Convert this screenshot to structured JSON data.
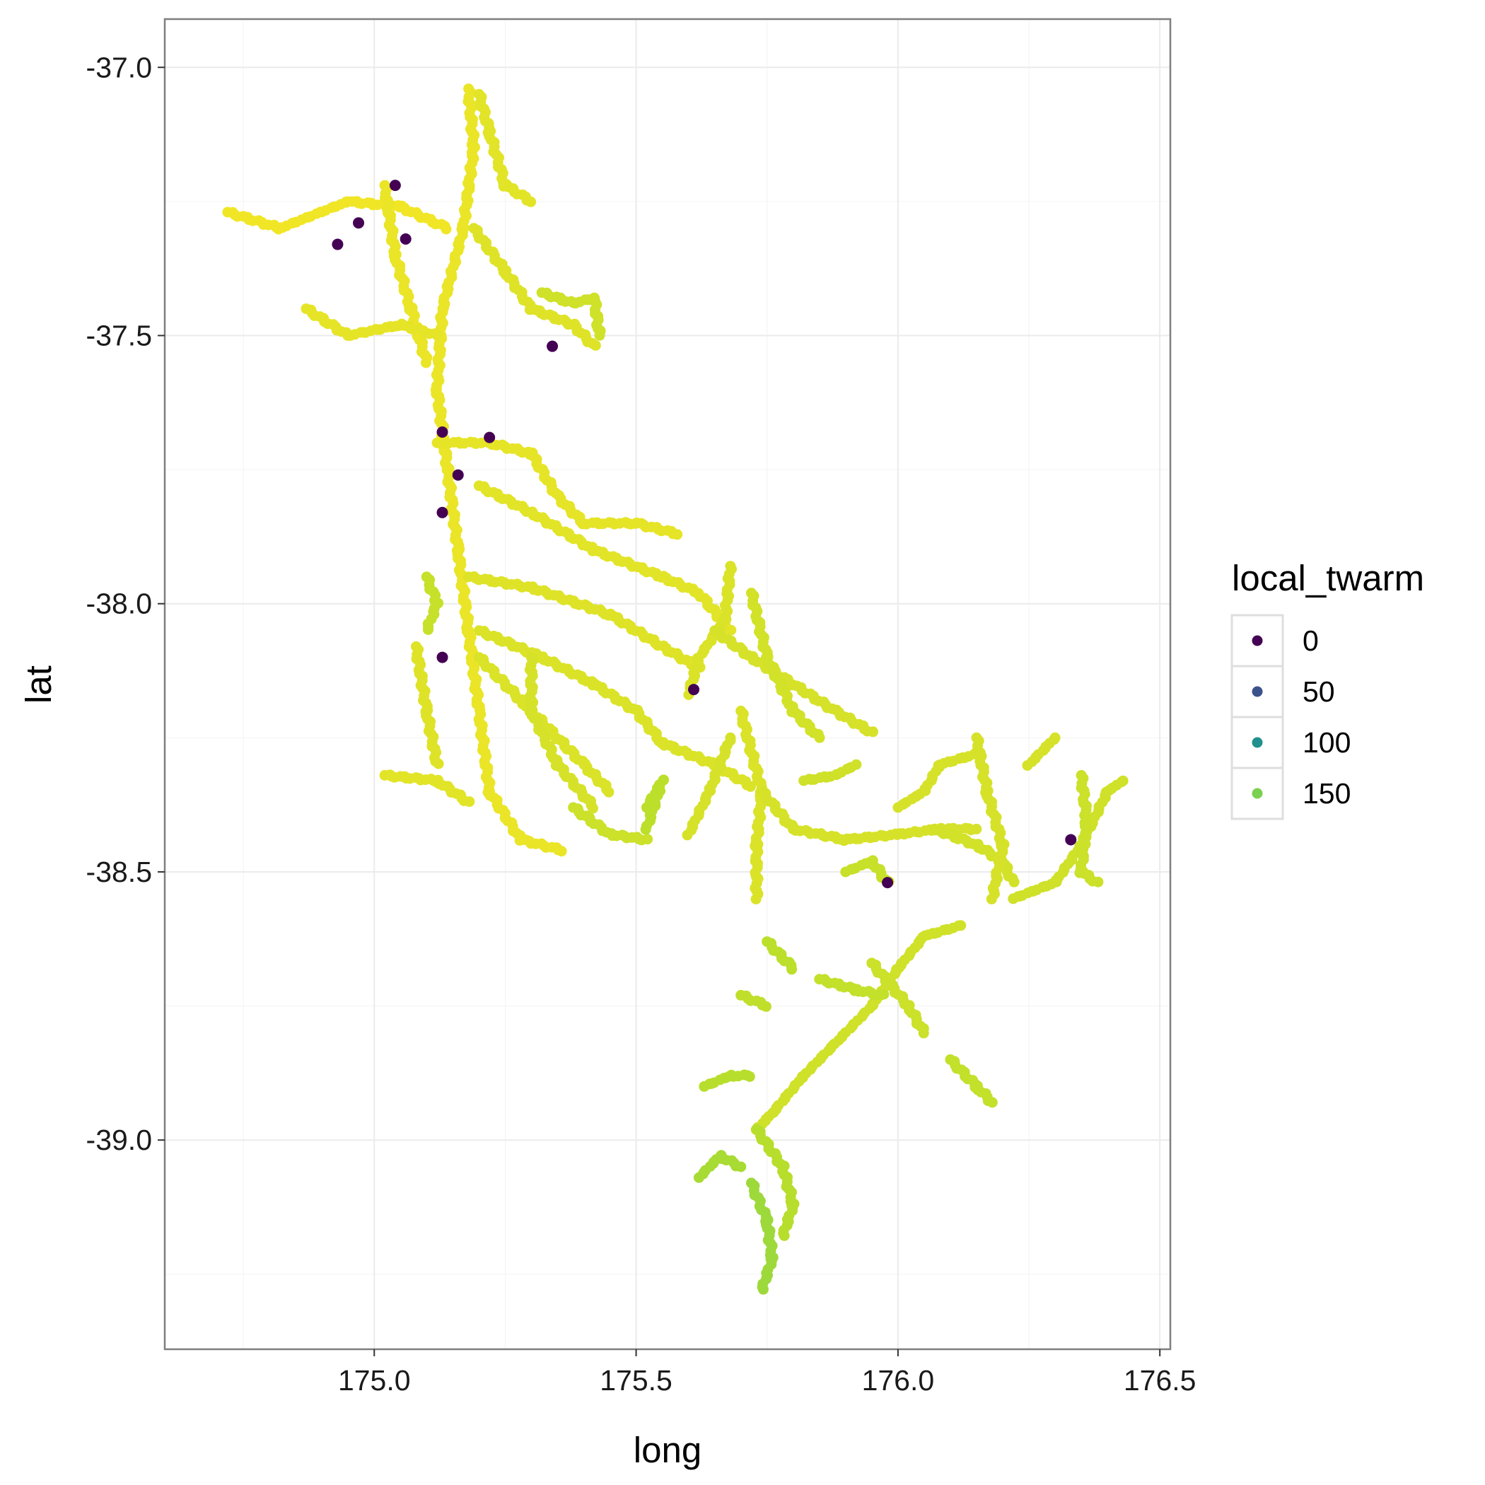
{
  "chart_data": {
    "type": "scatter",
    "title": "",
    "xlabel": "long",
    "ylabel": "lat",
    "xlim": [
      174.6,
      176.52
    ],
    "ylim": [
      -39.39,
      -36.91
    ],
    "x_ticks": [
      175.0,
      175.5,
      176.0,
      176.5
    ],
    "x_tick_labels": [
      "175.0",
      "175.5",
      "176.0",
      "176.5"
    ],
    "y_ticks": [
      -37.0,
      -37.5,
      -38.0,
      -38.5,
      -39.0
    ],
    "y_tick_labels": [
      "-37.0",
      "-37.5",
      "-38.0",
      "-38.5",
      "-39.0"
    ],
    "grid": true,
    "color_scale": "viridis",
    "color_range": [
      0,
      170
    ],
    "legend": {
      "title": "local_twarm",
      "placement": "right",
      "entries": [
        {
          "label": "0",
          "value": 0,
          "color": "#440154"
        },
        {
          "label": "50",
          "value": 50,
          "color": "#3B528B"
        },
        {
          "label": "100",
          "value": 100,
          "color": "#21908C"
        },
        {
          "label": "150",
          "value": 150,
          "color": "#7AD151"
        }
      ]
    },
    "river_paths": [
      {
        "value": 165,
        "pts": [
          [
            175.18,
            -37.04
          ],
          [
            175.19,
            -37.15
          ],
          [
            175.17,
            -37.3
          ],
          [
            175.13,
            -37.45
          ],
          [
            175.12,
            -37.6
          ],
          [
            175.14,
            -37.75
          ],
          [
            175.16,
            -37.9
          ],
          [
            175.18,
            -38.05
          ],
          [
            175.2,
            -38.2
          ],
          [
            175.22,
            -38.35
          ],
          [
            175.28,
            -38.44
          ],
          [
            175.36,
            -38.46
          ]
        ]
      },
      {
        "value": 167,
        "pts": [
          [
            174.72,
            -37.27
          ],
          [
            174.82,
            -37.3
          ],
          [
            174.95,
            -37.25
          ],
          [
            175.05,
            -37.26
          ],
          [
            175.14,
            -37.3
          ]
        ]
      },
      {
        "value": 165,
        "pts": [
          [
            175.02,
            -37.22
          ],
          [
            175.04,
            -37.35
          ],
          [
            175.07,
            -37.45
          ],
          [
            175.1,
            -37.55
          ]
        ]
      },
      {
        "value": 164,
        "pts": [
          [
            174.87,
            -37.45
          ],
          [
            174.95,
            -37.5
          ],
          [
            175.05,
            -37.48
          ],
          [
            175.12,
            -37.5
          ]
        ]
      },
      {
        "value": 163,
        "pts": [
          [
            175.2,
            -37.05
          ],
          [
            175.22,
            -37.12
          ],
          [
            175.25,
            -37.22
          ],
          [
            175.3,
            -37.25
          ]
        ]
      },
      {
        "value": 162,
        "pts": [
          [
            175.19,
            -37.3
          ],
          [
            175.25,
            -37.38
          ],
          [
            175.3,
            -37.45
          ],
          [
            175.38,
            -37.48
          ],
          [
            175.42,
            -37.52
          ]
        ]
      },
      {
        "value": 158,
        "pts": [
          [
            175.32,
            -37.42
          ],
          [
            175.38,
            -37.44
          ],
          [
            175.42,
            -37.43
          ],
          [
            175.43,
            -37.5
          ]
        ]
      },
      {
        "value": 164,
        "pts": [
          [
            175.12,
            -37.7
          ],
          [
            175.22,
            -37.7
          ],
          [
            175.3,
            -37.72
          ],
          [
            175.35,
            -37.8
          ],
          [
            175.4,
            -37.85
          ],
          [
            175.5,
            -37.85
          ],
          [
            175.58,
            -37.87
          ]
        ]
      },
      {
        "value": 163,
        "pts": [
          [
            175.2,
            -37.78
          ],
          [
            175.3,
            -37.83
          ],
          [
            175.42,
            -37.9
          ],
          [
            175.55,
            -37.95
          ],
          [
            175.62,
            -37.98
          ],
          [
            175.68,
            -38.05
          ]
        ]
      },
      {
        "value": 162,
        "pts": [
          [
            175.18,
            -37.95
          ],
          [
            175.3,
            -37.97
          ],
          [
            175.45,
            -38.02
          ],
          [
            175.55,
            -38.08
          ],
          [
            175.62,
            -38.12
          ]
        ]
      },
      {
        "value": 161,
        "pts": [
          [
            175.2,
            -38.05
          ],
          [
            175.32,
            -38.1
          ],
          [
            175.42,
            -38.15
          ],
          [
            175.5,
            -38.2
          ],
          [
            175.55,
            -38.26
          ],
          [
            175.65,
            -38.3
          ],
          [
            175.72,
            -38.34
          ]
        ]
      },
      {
        "value": 161,
        "pts": [
          [
            175.2,
            -38.1
          ],
          [
            175.28,
            -38.18
          ],
          [
            175.35,
            -38.25
          ],
          [
            175.4,
            -38.3
          ],
          [
            175.45,
            -38.35
          ]
        ]
      },
      {
        "value": 162,
        "pts": [
          [
            175.08,
            -38.08
          ],
          [
            175.1,
            -38.2
          ],
          [
            175.12,
            -38.3
          ]
        ]
      },
      {
        "value": 163,
        "pts": [
          [
            175.02,
            -38.32
          ],
          [
            175.12,
            -38.33
          ],
          [
            175.18,
            -38.37
          ]
        ]
      },
      {
        "value": 160,
        "pts": [
          [
            175.3,
            -38.1
          ],
          [
            175.3,
            -38.2
          ],
          [
            175.35,
            -38.3
          ],
          [
            175.42,
            -38.38
          ]
        ]
      },
      {
        "value": 157,
        "pts": [
          [
            175.38,
            -38.38
          ],
          [
            175.45,
            -38.43
          ],
          [
            175.52,
            -38.44
          ]
        ]
      },
      {
        "value": 161,
        "pts": [
          [
            175.68,
            -37.93
          ],
          [
            175.67,
            -38.03
          ],
          [
            175.62,
            -38.1
          ],
          [
            175.6,
            -38.17
          ]
        ]
      },
      {
        "value": 160,
        "pts": [
          [
            175.65,
            -38.05
          ],
          [
            175.72,
            -38.1
          ],
          [
            175.8,
            -38.15
          ],
          [
            175.88,
            -38.2
          ],
          [
            175.95,
            -38.24
          ]
        ]
      },
      {
        "value": 159,
        "pts": [
          [
            175.72,
            -37.98
          ],
          [
            175.75,
            -38.1
          ],
          [
            175.8,
            -38.2
          ],
          [
            175.85,
            -38.25
          ]
        ]
      },
      {
        "value": 161,
        "pts": [
          [
            175.7,
            -38.2
          ],
          [
            175.74,
            -38.35
          ],
          [
            175.73,
            -38.45
          ],
          [
            175.73,
            -38.55
          ]
        ]
      },
      {
        "value": 160,
        "pts": [
          [
            175.68,
            -38.25
          ],
          [
            175.64,
            -38.35
          ],
          [
            175.6,
            -38.43
          ]
        ]
      },
      {
        "value": 160,
        "pts": [
          [
            175.74,
            -38.35
          ],
          [
            175.8,
            -38.42
          ],
          [
            175.9,
            -38.44
          ],
          [
            176.0,
            -38.43
          ],
          [
            176.08,
            -38.42
          ],
          [
            176.15,
            -38.42
          ]
        ]
      },
      {
        "value": 158,
        "pts": [
          [
            175.82,
            -38.33
          ],
          [
            175.88,
            -38.32
          ],
          [
            175.92,
            -38.3
          ]
        ]
      },
      {
        "value": 160,
        "pts": [
          [
            176.0,
            -38.38
          ],
          [
            176.05,
            -38.35
          ],
          [
            176.08,
            -38.3
          ],
          [
            176.15,
            -38.28
          ]
        ]
      },
      {
        "value": 159,
        "pts": [
          [
            176.07,
            -38.42
          ],
          [
            176.15,
            -38.45
          ],
          [
            176.2,
            -38.48
          ],
          [
            176.22,
            -38.52
          ]
        ]
      },
      {
        "value": 160,
        "pts": [
          [
            176.15,
            -38.25
          ],
          [
            176.17,
            -38.35
          ],
          [
            176.2,
            -38.45
          ],
          [
            176.18,
            -38.55
          ]
        ]
      },
      {
        "value": 158,
        "pts": [
          [
            176.22,
            -38.55
          ],
          [
            176.3,
            -38.52
          ],
          [
            176.35,
            -38.45
          ],
          [
            176.4,
            -38.35
          ],
          [
            176.43,
            -38.33
          ]
        ]
      },
      {
        "value": 157,
        "pts": [
          [
            176.35,
            -38.32
          ],
          [
            176.36,
            -38.4
          ],
          [
            176.35,
            -38.5
          ],
          [
            176.38,
            -38.52
          ]
        ]
      },
      {
        "value": 158,
        "pts": [
          [
            176.12,
            -38.6
          ],
          [
            176.05,
            -38.62
          ],
          [
            176.0,
            -38.68
          ],
          [
            175.95,
            -38.75
          ],
          [
            175.88,
            -38.82
          ],
          [
            175.82,
            -38.88
          ],
          [
            175.76,
            -38.95
          ],
          [
            175.73,
            -38.98
          ]
        ]
      },
      {
        "value": 157,
        "pts": [
          [
            175.95,
            -38.67
          ],
          [
            176.02,
            -38.75
          ],
          [
            176.05,
            -38.8
          ]
        ]
      },
      {
        "value": 155,
        "pts": [
          [
            176.1,
            -38.85
          ],
          [
            176.15,
            -38.9
          ],
          [
            176.18,
            -38.93
          ]
        ]
      },
      {
        "value": 155,
        "pts": [
          [
            175.85,
            -38.7
          ],
          [
            175.92,
            -38.72
          ],
          [
            175.97,
            -38.73
          ]
        ]
      },
      {
        "value": 154,
        "pts": [
          [
            175.7,
            -38.73
          ],
          [
            175.75,
            -38.75
          ]
        ]
      },
      {
        "value": 153,
        "pts": [
          [
            175.75,
            -38.63
          ],
          [
            175.8,
            -38.68
          ]
        ]
      },
      {
        "value": 152,
        "pts": [
          [
            175.73,
            -38.98
          ],
          [
            175.78,
            -39.05
          ],
          [
            175.8,
            -39.12
          ],
          [
            175.78,
            -39.18
          ]
        ]
      },
      {
        "value": 145,
        "pts": [
          [
            175.72,
            -39.08
          ],
          [
            175.75,
            -39.15
          ],
          [
            175.76,
            -39.22
          ],
          [
            175.74,
            -39.28
          ]
        ]
      },
      {
        "value": 148,
        "pts": [
          [
            175.62,
            -39.07
          ],
          [
            175.66,
            -39.03
          ],
          [
            175.7,
            -39.05
          ]
        ]
      },
      {
        "value": 152,
        "pts": [
          [
            175.63,
            -38.9
          ],
          [
            175.68,
            -38.88
          ],
          [
            175.72,
            -38.88
          ]
        ]
      },
      {
        "value": 153,
        "pts": [
          [
            175.52,
            -38.38
          ],
          [
            175.55,
            -38.33
          ],
          [
            175.52,
            -38.42
          ]
        ]
      },
      {
        "value": 156,
        "pts": [
          [
            175.9,
            -38.5
          ],
          [
            175.95,
            -38.48
          ],
          [
            175.98,
            -38.52
          ]
        ]
      },
      {
        "value": 160,
        "pts": [
          [
            176.3,
            -38.25
          ],
          [
            176.25,
            -38.3
          ]
        ]
      },
      {
        "value": 156,
        "pts": [
          [
            175.1,
            -37.95
          ],
          [
            175.12,
            -38.0
          ],
          [
            175.1,
            -38.05
          ]
        ]
      }
    ],
    "highlighted_points": [
      {
        "x": 175.04,
        "y": -37.22,
        "value": 0
      },
      {
        "x": 174.97,
        "y": -37.29,
        "value": 0
      },
      {
        "x": 174.93,
        "y": -37.33,
        "value": 0
      },
      {
        "x": 175.06,
        "y": -37.32,
        "value": 0
      },
      {
        "x": 175.34,
        "y": -37.52,
        "value": 0
      },
      {
        "x": 175.13,
        "y": -37.68,
        "value": 0
      },
      {
        "x": 175.22,
        "y": -37.69,
        "value": 0
      },
      {
        "x": 175.16,
        "y": -37.76,
        "value": 0
      },
      {
        "x": 175.13,
        "y": -37.83,
        "value": 0
      },
      {
        "x": 175.13,
        "y": -38.1,
        "value": 0
      },
      {
        "x": 175.61,
        "y": -38.16,
        "value": 0
      },
      {
        "x": 175.98,
        "y": -38.52,
        "value": 0
      },
      {
        "x": 176.33,
        "y": -38.44,
        "value": 0
      }
    ]
  }
}
